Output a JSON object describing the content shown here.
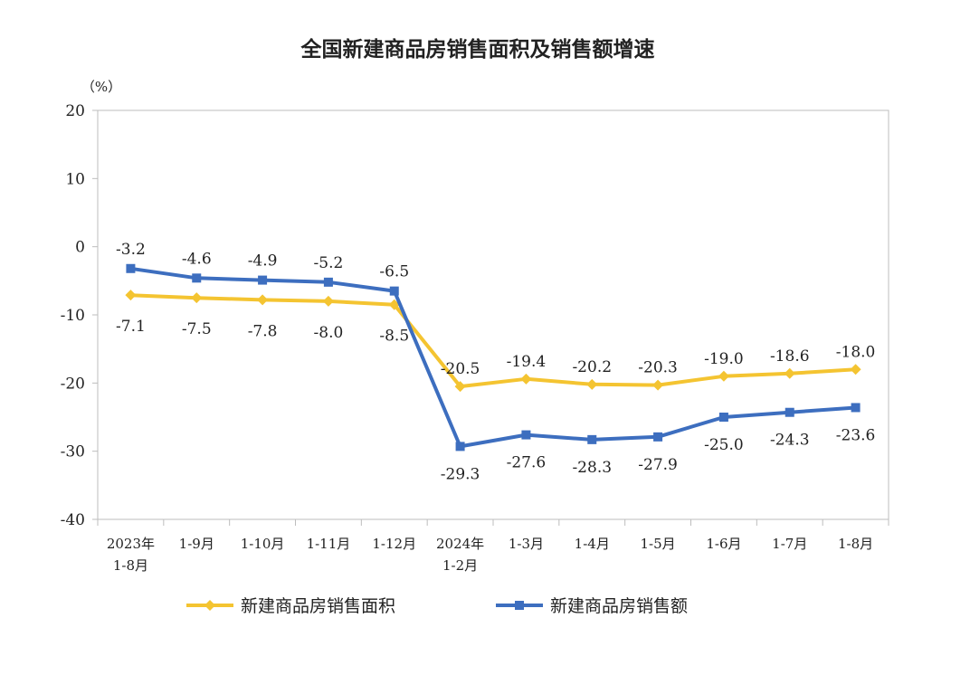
{
  "chart_data": {
    "type": "line",
    "title": "全国新建商品房销售面积及销售额增速",
    "unit": "（%）",
    "categories": [
      [
        "2023年",
        "1-8月"
      ],
      [
        "1-9月"
      ],
      [
        "1-10月"
      ],
      [
        "1-11月"
      ],
      [
        "1-12月"
      ],
      [
        "2024年",
        "1-2月"
      ],
      [
        "1-3月"
      ],
      [
        "1-4月"
      ],
      [
        "1-5月"
      ],
      [
        "1-6月"
      ],
      [
        "1-7月"
      ],
      [
        "1-8月"
      ]
    ],
    "ylim": [
      -40,
      20
    ],
    "yticks": [
      20,
      10,
      0,
      -10,
      -20,
      -30,
      -40
    ],
    "legend_position": "bottom",
    "series": [
      {
        "name": "新建商品房销售面积",
        "color": "#F4C431",
        "marker": "diamond",
        "values": [
          -7.1,
          -7.5,
          -7.8,
          -8.0,
          -8.5,
          -20.5,
          -19.4,
          -20.2,
          -20.3,
          -19.0,
          -18.6,
          -18.0
        ],
        "labels": [
          "-7.1",
          "-7.5",
          "-7.8",
          "-8.0",
          "-8.5",
          "-20.5",
          "-19.4",
          "-20.2",
          "-20.3",
          "-19.0",
          "-18.6",
          "-18.0"
        ]
      },
      {
        "name": "新建商品房销售额",
        "color": "#3D6EBF",
        "marker": "square",
        "values": [
          -3.2,
          -4.6,
          -4.9,
          -5.2,
          -6.5,
          -29.3,
          -27.6,
          -28.3,
          -27.9,
          -25.0,
          -24.3,
          -23.6
        ],
        "labels": [
          "-3.2",
          "-4.6",
          "-4.9",
          "-5.2",
          "-6.5",
          "-29.3",
          "-27.6",
          "-28.3",
          "-27.9",
          "-25.0",
          "-24.3",
          "-23.6"
        ]
      }
    ]
  }
}
